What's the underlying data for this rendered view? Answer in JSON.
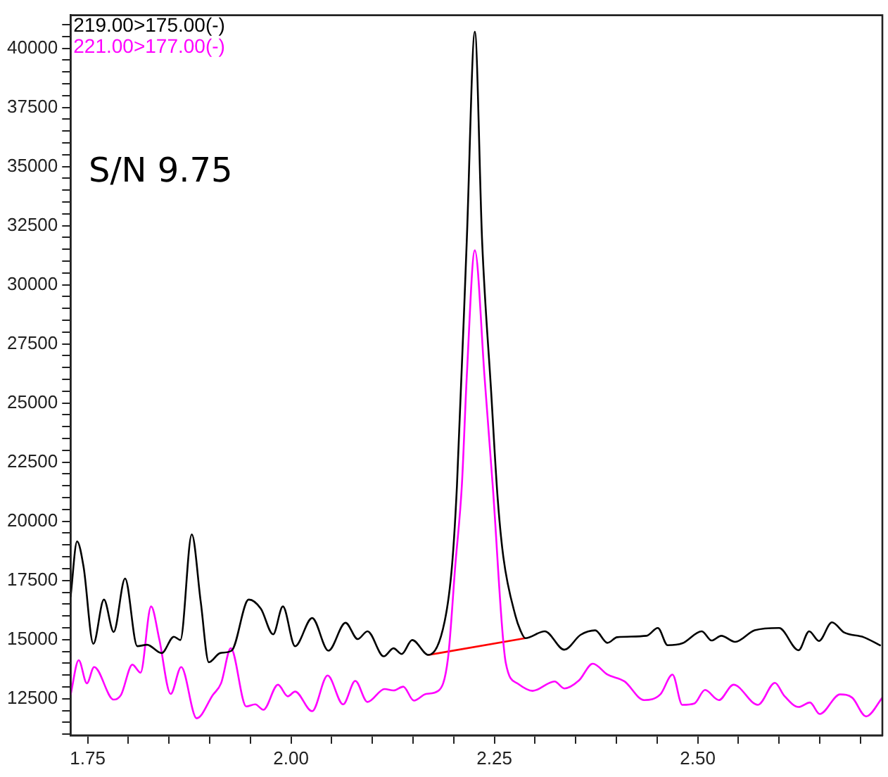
{
  "chart_data": {
    "type": "line",
    "legend": "top left",
    "marker": "none",
    "line_style": "solid",
    "grid": false,
    "annotations": [
      "S/N 9.75"
    ],
    "xlim": [
      1.729,
      2.727
    ],
    "ylim": [
      10950,
      41400
    ],
    "xticks": [
      {
        "value": 1.75,
        "label": "1.75"
      },
      {
        "value": 1.8,
        "label": null
      },
      {
        "value": 1.85,
        "label": null
      },
      {
        "value": 1.9,
        "label": null
      },
      {
        "value": 1.95,
        "label": null
      },
      {
        "value": 2,
        "label": "2.00"
      },
      {
        "value": 2.05,
        "label": null
      },
      {
        "value": 2.1,
        "label": null
      },
      {
        "value": 2.15,
        "label": null
      },
      {
        "value": 2.2,
        "label": null
      },
      {
        "value": 2.25,
        "label": "2.25"
      },
      {
        "value": 2.3,
        "label": null
      },
      {
        "value": 2.35,
        "label": null
      },
      {
        "value": 2.4,
        "label": null
      },
      {
        "value": 2.45,
        "label": null
      },
      {
        "value": 2.5,
        "label": "2.50"
      },
      {
        "value": 2.55,
        "label": null
      },
      {
        "value": 2.6,
        "label": null
      },
      {
        "value": 2.65,
        "label": null
      },
      {
        "value": 2.7,
        "label": null
      }
    ],
    "yticks": [
      {
        "value": 11000,
        "label": null
      },
      {
        "value": 11500,
        "label": null
      },
      {
        "value": 12000,
        "label": null
      },
      12500,
      {
        "value": 13000,
        "label": null
      },
      {
        "value": 13500,
        "label": null
      },
      {
        "value": 14000,
        "label": null
      },
      {
        "value": 14500,
        "label": null
      },
      15000,
      {
        "value": 15500,
        "label": null
      },
      {
        "value": 16000,
        "label": null
      },
      {
        "value": 16500,
        "label": null
      },
      {
        "value": 17000,
        "label": null
      },
      17500,
      {
        "value": 18000,
        "label": null
      },
      {
        "value": 18500,
        "label": null
      },
      {
        "value": 19000,
        "label": null
      },
      {
        "value": 19500,
        "label": null
      },
      20000,
      {
        "value": 20500,
        "label": null
      },
      {
        "value": 21000,
        "label": null
      },
      {
        "value": 21500,
        "label": null
      },
      {
        "value": 22000,
        "label": null
      },
      22500,
      {
        "value": 23000,
        "label": null
      },
      {
        "value": 23500,
        "label": null
      },
      {
        "value": 24000,
        "label": null
      },
      {
        "value": 24500,
        "label": null
      },
      25000,
      {
        "value": 25500,
        "label": null
      },
      {
        "value": 26000,
        "label": null
      },
      {
        "value": 26500,
        "label": null
      },
      {
        "value": 27000,
        "label": null
      },
      27500,
      {
        "value": 28000,
        "label": null
      },
      {
        "value": 28500,
        "label": null
      },
      {
        "value": 29000,
        "label": null
      },
      {
        "value": 29500,
        "label": null
      },
      30000,
      {
        "value": 30500,
        "label": null
      },
      {
        "value": 31000,
        "label": null
      },
      {
        "value": 31500,
        "label": null
      },
      {
        "value": 32000,
        "label": null
      },
      32500,
      {
        "value": 33000,
        "label": null
      },
      {
        "value": 33500,
        "label": null
      },
      {
        "value": 34000,
        "label": null
      },
      {
        "value": 34500,
        "label": null
      },
      35000,
      {
        "value": 35500,
        "label": null
      },
      {
        "value": 36000,
        "label": null
      },
      {
        "value": 36500,
        "label": null
      },
      {
        "value": 37000,
        "label": null
      },
      37500,
      {
        "value": 38000,
        "label": null
      },
      {
        "value": 38500,
        "label": null
      },
      {
        "value": 39000,
        "label": null
      },
      {
        "value": 39500,
        "label": null
      },
      40000,
      {
        "value": 40500,
        "label": null
      },
      {
        "value": 41000,
        "label": null
      }
    ],
    "series": [
      {
        "name": "219.00>175.00(-)",
        "color": "#000000",
        "x": [
          1.729,
          1.737,
          1.745,
          1.757,
          1.77,
          1.782,
          1.796,
          1.811,
          1.823,
          1.841,
          1.856,
          1.864,
          1.878,
          1.889,
          1.899,
          1.913,
          1.927,
          1.948,
          1.963,
          1.978,
          1.99,
          2.005,
          2.026,
          2.046,
          2.067,
          2.082,
          2.094,
          2.114,
          2.126,
          2.136,
          2.149,
          2.169,
          2.189,
          2.198,
          2.204,
          2.216,
          2.226,
          2.235,
          2.246,
          2.254,
          2.261,
          2.276,
          2.282,
          2.288,
          2.312,
          2.336,
          2.356,
          2.374,
          2.389,
          2.401,
          2.437,
          2.451,
          2.463,
          2.481,
          2.505,
          2.517,
          2.529,
          2.546,
          2.57,
          2.6,
          2.624,
          2.637,
          2.649,
          2.665,
          2.68,
          2.704,
          2.725
        ],
        "values": [
          16800,
          19150,
          18070,
          14820,
          16690,
          15320,
          17580,
          14720,
          14780,
          14430,
          15120,
          14980,
          19450,
          16600,
          14040,
          14430,
          14530,
          16690,
          16300,
          15220,
          16400,
          14720,
          15910,
          14530,
          15710,
          15020,
          15350,
          14290,
          14630,
          14390,
          14980,
          14350,
          15790,
          18150,
          21500,
          31800,
          40700,
          31800,
          25500,
          21000,
          18500,
          15990,
          15390,
          15060,
          15350,
          14570,
          15200,
          15390,
          14860,
          15100,
          15160,
          15490,
          14760,
          14840,
          15350,
          14960,
          15160,
          14900,
          15390,
          15490,
          14550,
          15350,
          14940,
          15730,
          15300,
          15100,
          14740
        ]
      },
      {
        "name": "221.00>177.00(-)",
        "color": "#ff00ff",
        "x": [
          1.729,
          1.739,
          1.749,
          1.758,
          1.782,
          1.791,
          1.805,
          1.815,
          1.828,
          1.838,
          1.852,
          1.865,
          1.884,
          1.904,
          1.914,
          1.926,
          1.945,
          1.956,
          1.966,
          1.984,
          1.996,
          2.005,
          2.026,
          2.045,
          2.064,
          2.079,
          2.094,
          2.115,
          2.126,
          2.138,
          2.151,
          2.166,
          2.181,
          2.193,
          2.202,
          2.21,
          2.216,
          2.226,
          2.238,
          2.248,
          2.264,
          2.279,
          2.297,
          2.324,
          2.336,
          2.354,
          2.371,
          2.389,
          2.41,
          2.434,
          2.454,
          2.469,
          2.481,
          2.496,
          2.509,
          2.526,
          2.544,
          2.574,
          2.595,
          2.606,
          2.624,
          2.638,
          2.65,
          2.675,
          2.69,
          2.707,
          2.727
        ],
        "values": [
          12660,
          14130,
          13150,
          13840,
          12460,
          12660,
          13940,
          13600,
          16400,
          15020,
          12700,
          13840,
          11670,
          12660,
          13150,
          14630,
          12170,
          12260,
          12030,
          13090,
          12600,
          12800,
          11970,
          13480,
          12260,
          13250,
          12360,
          12910,
          12850,
          13010,
          12420,
          12700,
          12830,
          14210,
          18150,
          21500,
          26070,
          31460,
          26070,
          21500,
          14020,
          13130,
          12830,
          13230,
          12930,
          13270,
          13980,
          13520,
          13230,
          12440,
          12680,
          13520,
          12240,
          12300,
          12870,
          12440,
          13090,
          12240,
          13170,
          12640,
          12150,
          12340,
          11850,
          12680,
          12540,
          11750,
          12540
        ]
      },
      {
        "color": "#ff0000",
        "x": [
          2.169,
          2.288
        ],
        "values": [
          14350,
          15060
        ]
      }
    ]
  }
}
